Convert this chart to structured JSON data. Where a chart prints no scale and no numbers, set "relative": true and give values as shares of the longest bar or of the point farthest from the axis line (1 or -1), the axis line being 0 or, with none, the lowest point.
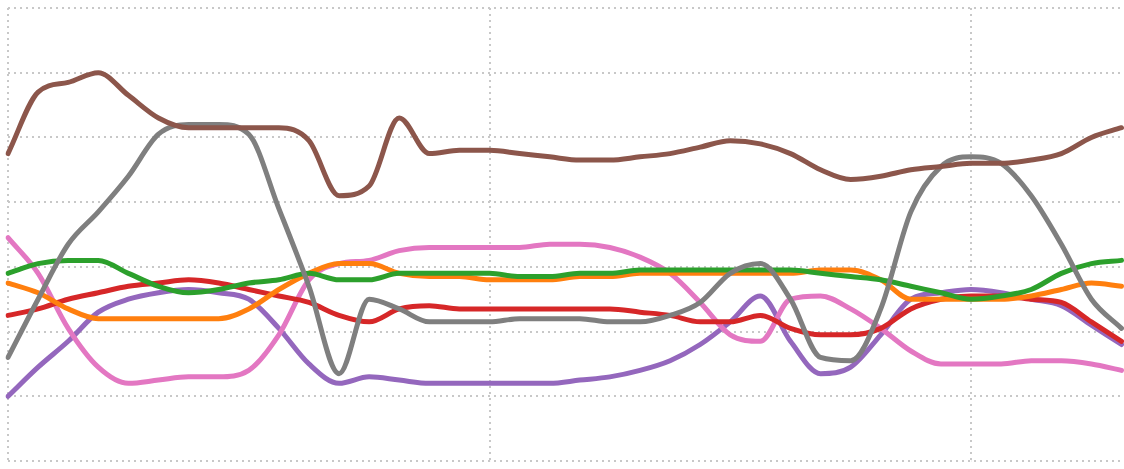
{
  "chart_data": {
    "type": "line",
    "relative": true,
    "grid": true,
    "line_style": "solid",
    "categories": [
      null,
      null,
      null,
      null,
      null,
      null,
      null,
      null,
      null,
      null,
      null,
      null,
      null,
      null,
      null,
      null,
      null,
      null,
      null,
      null,
      null,
      null,
      null,
      null,
      null,
      null,
      null,
      null,
      null,
      null,
      null,
      null,
      null,
      null,
      null,
      null,
      null,
      null
    ],
    "series": [
      {
        "color": "#8c564b",
        "values": [
          0.75,
          0.94,
          0.97,
          1.0,
          0.93,
          0.86,
          0.83,
          0.83,
          0.83,
          0.83,
          0.79,
          0.62,
          0.65,
          0.86,
          0.75,
          0.76,
          0.76,
          0.75,
          0.74,
          0.73,
          0.73,
          0.74,
          0.75,
          0.77,
          0.79,
          0.78,
          0.75,
          0.7,
          0.67,
          0.68,
          0.7,
          0.71,
          0.72,
          0.72,
          0.73,
          0.75,
          0.8,
          0.83
        ]
      },
      {
        "color": "#7f7f7f",
        "values": [
          0.12,
          0.3,
          0.47,
          0.57,
          0.68,
          0.81,
          0.84,
          0.84,
          0.81,
          0.58,
          0.34,
          0.07,
          0.3,
          0.27,
          0.23,
          0.23,
          0.23,
          0.24,
          0.24,
          0.24,
          0.23,
          0.23,
          0.25,
          0.29,
          0.38,
          0.41,
          0.3,
          0.12,
          0.11,
          0.27,
          0.57,
          0.71,
          0.74,
          0.72,
          0.62,
          0.47,
          0.3,
          0.21
        ]
      },
      {
        "color": "#2ca02c",
        "values": [
          0.38,
          0.41,
          0.42,
          0.42,
          0.38,
          0.34,
          0.32,
          0.33,
          0.35,
          0.36,
          0.38,
          0.36,
          0.36,
          0.38,
          0.38,
          0.38,
          0.38,
          0.37,
          0.37,
          0.38,
          0.38,
          0.39,
          0.39,
          0.39,
          0.39,
          0.39,
          0.39,
          0.38,
          0.37,
          0.36,
          0.34,
          0.32,
          0.3,
          0.31,
          0.33,
          0.38,
          0.41,
          0.42
        ]
      },
      {
        "color": "#ff7f0e",
        "values": [
          0.35,
          0.32,
          0.27,
          0.24,
          0.24,
          0.24,
          0.24,
          0.24,
          0.27,
          0.33,
          0.38,
          0.41,
          0.41,
          0.38,
          0.37,
          0.37,
          0.36,
          0.36,
          0.36,
          0.37,
          0.37,
          0.38,
          0.38,
          0.38,
          0.38,
          0.38,
          0.38,
          0.39,
          0.39,
          0.36,
          0.3,
          0.3,
          0.3,
          0.3,
          0.31,
          0.33,
          0.35,
          0.34
        ]
      },
      {
        "color": "#d62728",
        "values": [
          0.25,
          0.27,
          0.3,
          0.32,
          0.34,
          0.35,
          0.36,
          0.35,
          0.33,
          0.31,
          0.29,
          0.25,
          0.23,
          0.27,
          0.28,
          0.27,
          0.27,
          0.27,
          0.27,
          0.27,
          0.27,
          0.26,
          0.25,
          0.23,
          0.23,
          0.25,
          0.21,
          0.19,
          0.19,
          0.21,
          0.27,
          0.3,
          0.31,
          0.31,
          0.3,
          0.29,
          0.23,
          0.17
        ]
      },
      {
        "color": "#e377c2",
        "values": [
          0.49,
          0.38,
          0.21,
          0.09,
          0.04,
          0.05,
          0.06,
          0.06,
          0.08,
          0.19,
          0.36,
          0.41,
          0.42,
          0.45,
          0.46,
          0.46,
          0.46,
          0.46,
          0.47,
          0.47,
          0.46,
          0.43,
          0.38,
          0.29,
          0.19,
          0.17,
          0.3,
          0.31,
          0.27,
          0.21,
          0.14,
          0.1,
          0.1,
          0.1,
          0.11,
          0.11,
          0.1,
          0.08
        ]
      },
      {
        "color": "#9467bd",
        "values": [
          0.0,
          0.09,
          0.17,
          0.26,
          0.3,
          0.32,
          0.33,
          0.32,
          0.3,
          0.21,
          0.1,
          0.04,
          0.06,
          0.05,
          0.04,
          0.04,
          0.04,
          0.04,
          0.04,
          0.05,
          0.06,
          0.08,
          0.11,
          0.16,
          0.23,
          0.31,
          0.17,
          0.07,
          0.09,
          0.19,
          0.3,
          0.32,
          0.33,
          0.32,
          0.3,
          0.28,
          0.22,
          0.16
        ]
      }
    ]
  }
}
